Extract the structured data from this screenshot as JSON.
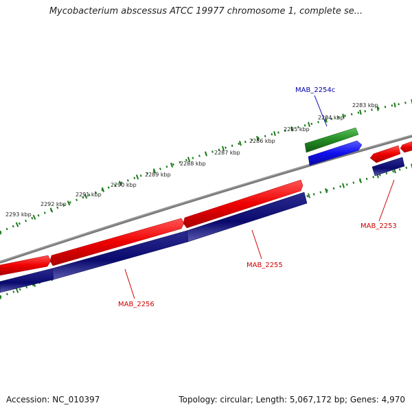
{
  "map": {
    "title": "Mycobacterium abscessus ATCC 19977 chromosome 1, complete se...",
    "accession": "Accession: NC_010397",
    "stats": "Topology: circular; Length: 5,067,172 bp; Genes: 4,970"
  },
  "ruler": {
    "unit": "kbp",
    "labels": [
      "2283 kbp",
      "2284 kbp",
      "2285 kbp",
      "2286 kbp",
      "2287 kbp",
      "2288 kbp",
      "2289 kbp",
      "2290 kbp",
      "2291 kbp",
      "2292 kbp",
      "2293 kbp"
    ]
  },
  "genes": [
    {
      "name": "MAB_2253",
      "color": "#cc0000"
    },
    {
      "name": "MAB_2254c",
      "color": "#0000aa"
    },
    {
      "name": "MAB_2255",
      "color": "#cc0000"
    },
    {
      "name": "MAB_2256",
      "color": "#cc0000"
    }
  ],
  "colors": {
    "gene_fwd": "#ee0000",
    "cds": "#0a0a6e",
    "gene_rev": "#228b22",
    "cds_rev": "#1010ee",
    "backbone": "#808080",
    "tick": "#1a7a1a"
  }
}
